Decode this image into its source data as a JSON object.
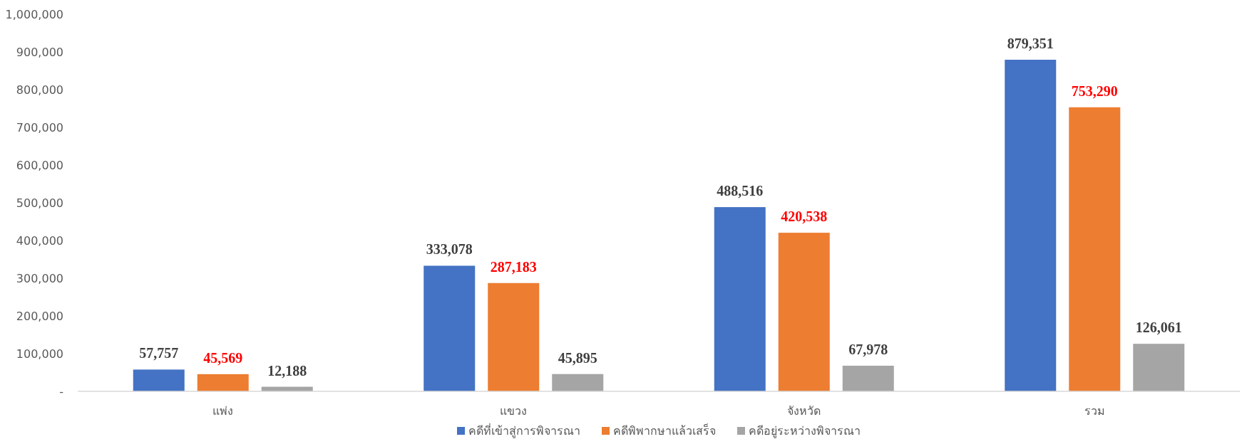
{
  "chart_data": {
    "type": "bar",
    "categories": [
      "แพ่ง",
      "แขวง",
      "จังหวัด",
      "รวม"
    ],
    "series": [
      {
        "name": "คดีที่เข้าสู่การพิจารณา",
        "color": "#4472c4",
        "values": [
          57757,
          333078,
          488516,
          879351
        ],
        "value_labels": [
          "57,757",
          "333,078",
          "488,516",
          "879,351"
        ]
      },
      {
        "name": "คดีพิพากษาแล้วเสร็จ",
        "color": "#ed7d31",
        "values": [
          45569,
          287183,
          420538,
          753290
        ],
        "value_labels": [
          "45,569",
          "287,183",
          "420,538",
          "753,290"
        ]
      },
      {
        "name": "คดีอยู่ระหว่างพิจารณา",
        "color": "#a5a5a5",
        "values": [
          12188,
          45895,
          67978,
          126061
        ],
        "value_labels": [
          "12,188",
          "45,895",
          "67,978",
          "126,061"
        ]
      }
    ],
    "ylim": [
      0,
      1000000
    ],
    "yticks": [
      {
        "value": 0,
        "label": "-"
      },
      {
        "value": 100000,
        "label": "100,000"
      },
      {
        "value": 200000,
        "label": "200,000"
      },
      {
        "value": 300000,
        "label": "300,000"
      },
      {
        "value": 400000,
        "label": "400,000"
      },
      {
        "value": 500000,
        "label": "500,000"
      },
      {
        "value": 600000,
        "label": "600,000"
      },
      {
        "value": 700000,
        "label": "700,000"
      },
      {
        "value": 800000,
        "label": "800,000"
      },
      {
        "value": 900000,
        "label": "900,000"
      },
      {
        "value": 1000000,
        "label": "1,000,000"
      }
    ],
    "grid": false,
    "legend": "bottom"
  }
}
